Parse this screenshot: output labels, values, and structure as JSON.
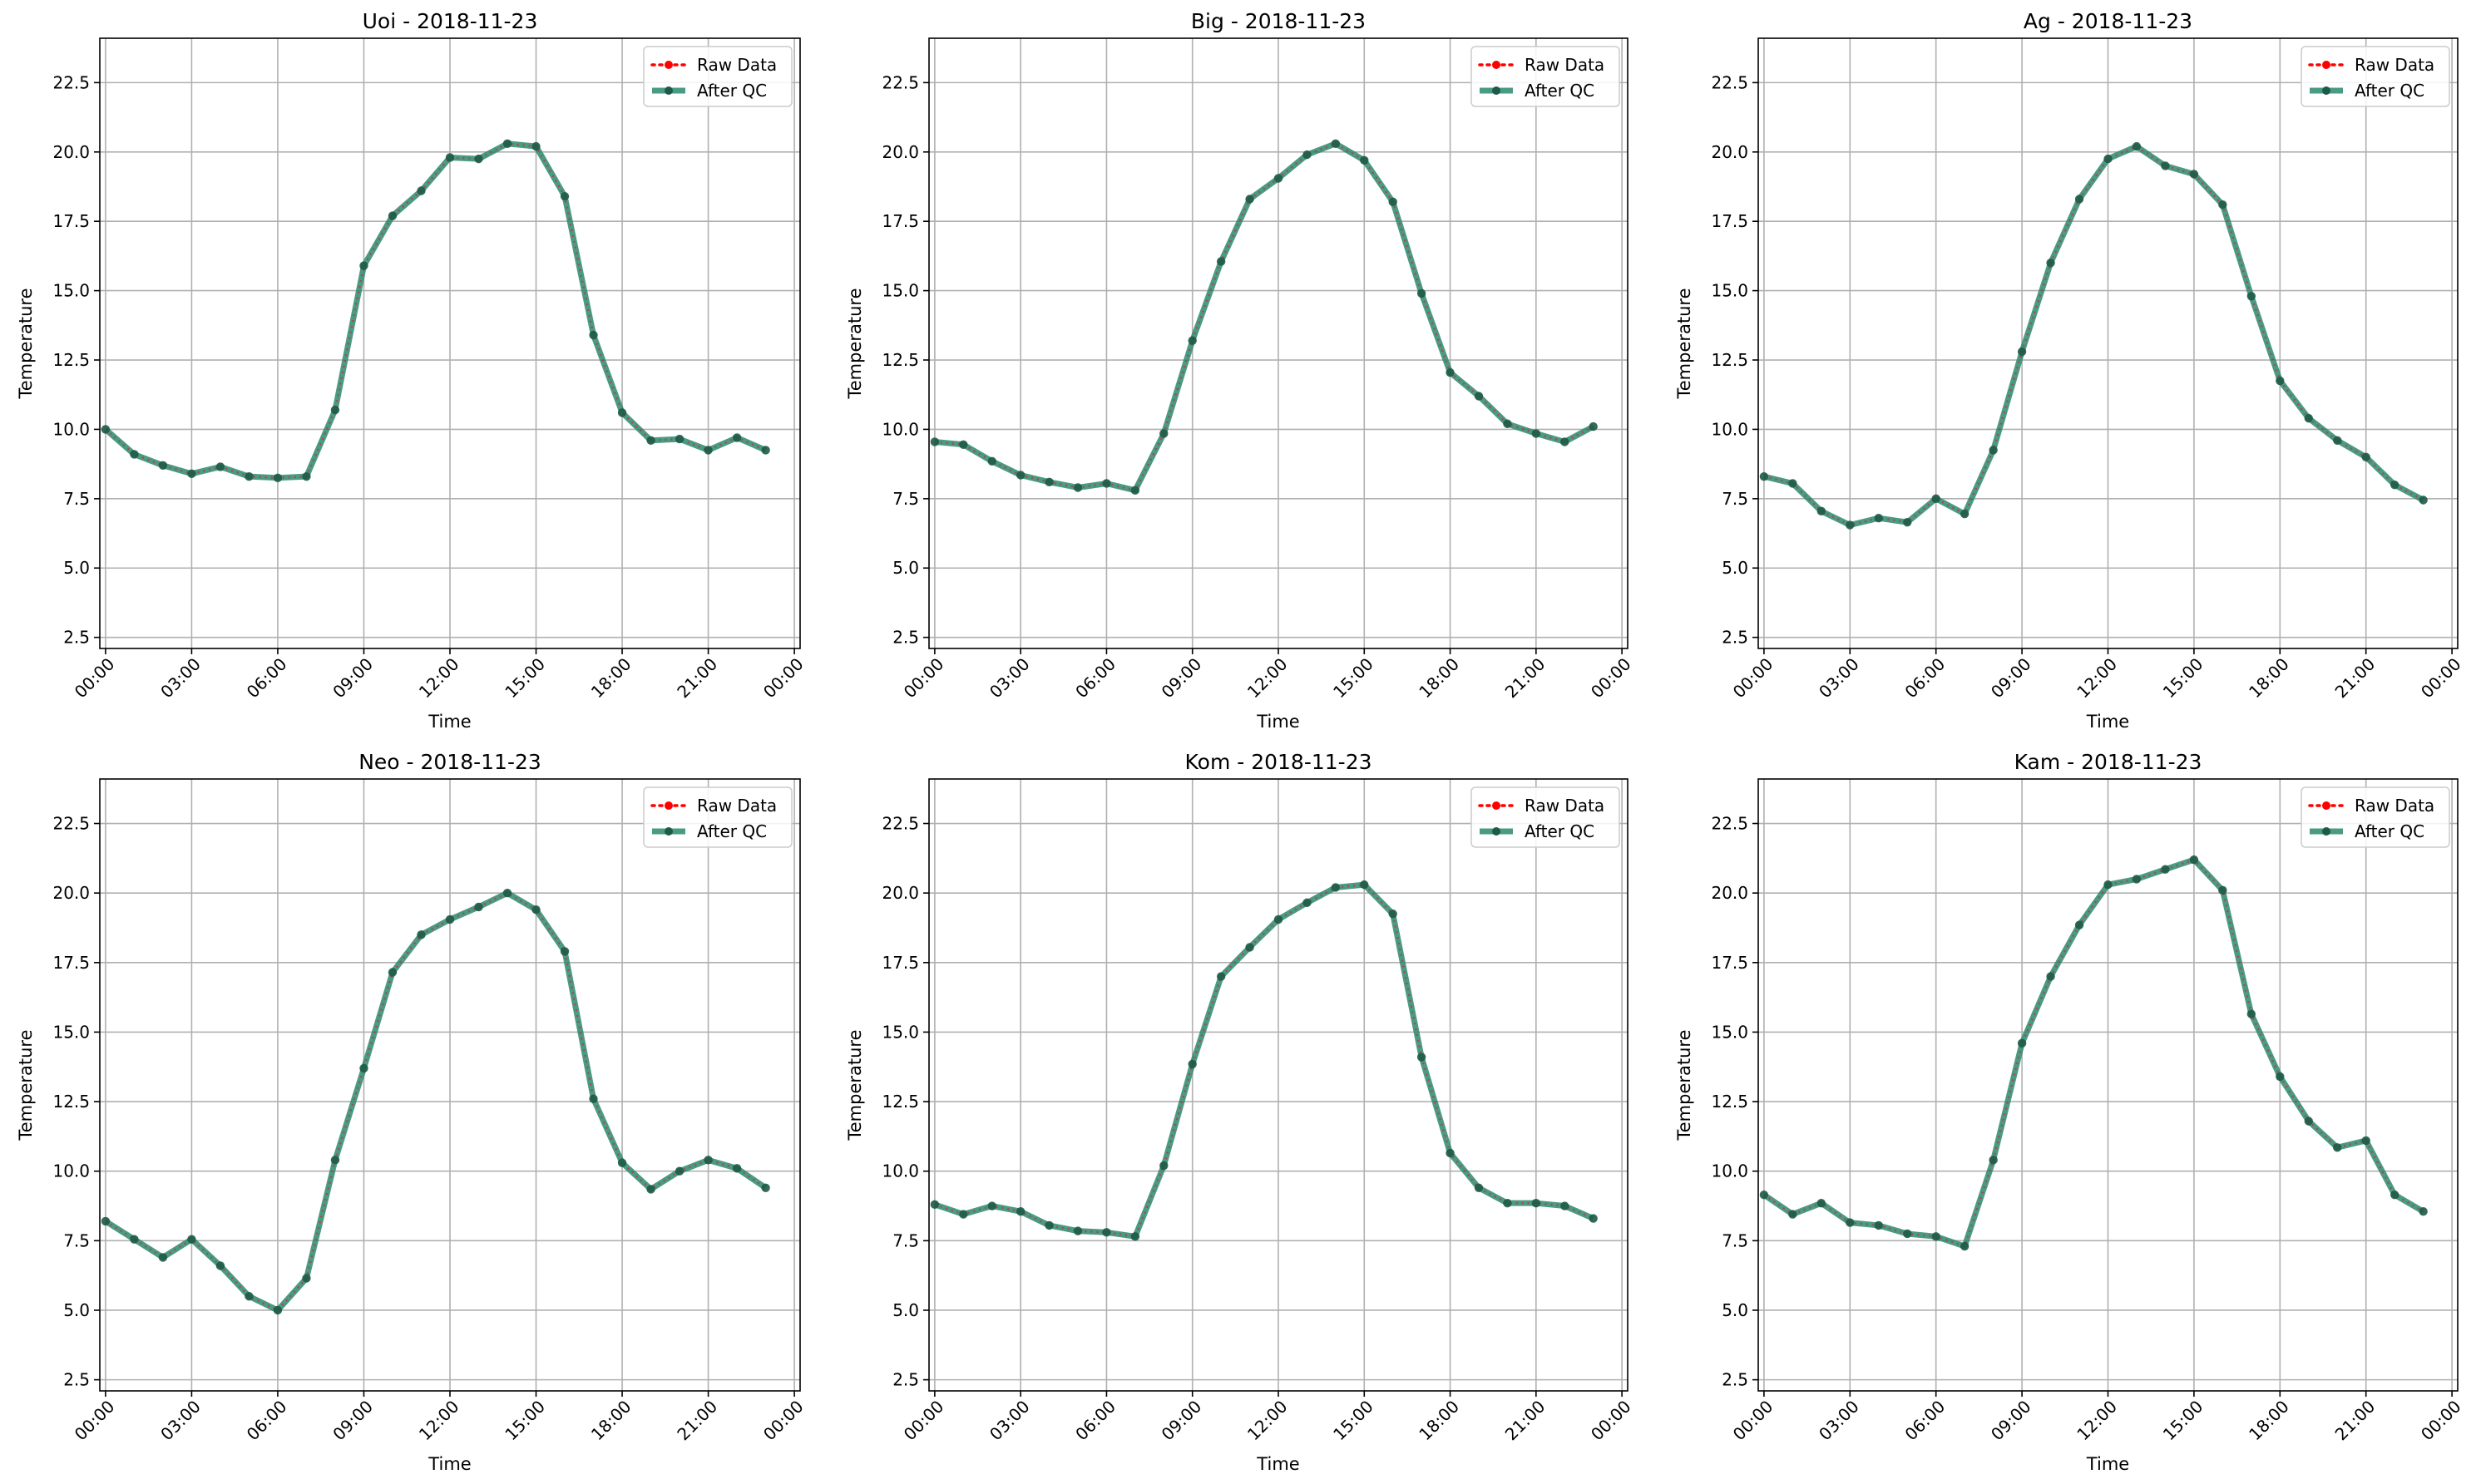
{
  "chart_data": [
    {
      "type": "line",
      "title": "Uoi - 2018-11-23",
      "xlabel": "Time",
      "ylabel": "Temperature",
      "x_tick_labels": [
        "00:00",
        "03:00",
        "06:00",
        "09:00",
        "12:00",
        "15:00",
        "18:00",
        "21:00",
        "00:00"
      ],
      "y_tick_labels": [
        "2.5",
        "5.0",
        "7.5",
        "10.0",
        "12.5",
        "15.0",
        "17.5",
        "20.0",
        "22.5"
      ],
      "ylim": [
        2.1,
        24.1
      ],
      "xlim_hours": [
        -0.2,
        24.2
      ],
      "grid": true,
      "legend_position": "top-right",
      "series": [
        {
          "name": "Raw Data",
          "values": [
            10.0,
            9.1,
            8.7,
            8.4,
            8.65,
            8.3,
            8.25,
            8.3,
            10.7,
            15.9,
            17.7,
            18.6,
            19.8,
            19.75,
            20.3,
            20.2,
            18.4,
            13.4,
            10.6,
            9.6,
            9.65,
            9.25,
            9.7,
            9.25
          ]
        },
        {
          "name": "After QC",
          "values": [
            10.0,
            9.1,
            8.7,
            8.4,
            8.65,
            8.3,
            8.25,
            8.3,
            10.7,
            15.9,
            17.7,
            18.6,
            19.8,
            19.75,
            20.3,
            20.2,
            18.4,
            13.4,
            10.6,
            9.6,
            9.65,
            9.25,
            9.7,
            9.25
          ]
        }
      ]
    },
    {
      "type": "line",
      "title": "Big - 2018-11-23",
      "xlabel": "Time",
      "ylabel": "Temperature",
      "x_tick_labels": [
        "00:00",
        "03:00",
        "06:00",
        "09:00",
        "12:00",
        "15:00",
        "18:00",
        "21:00",
        "00:00"
      ],
      "y_tick_labels": [
        "2.5",
        "5.0",
        "7.5",
        "10.0",
        "12.5",
        "15.0",
        "17.5",
        "20.0",
        "22.5"
      ],
      "ylim": [
        2.1,
        24.1
      ],
      "xlim_hours": [
        -0.2,
        24.2
      ],
      "grid": true,
      "legend_position": "top-right",
      "series": [
        {
          "name": "Raw Data",
          "values": [
            9.55,
            9.45,
            8.85,
            8.35,
            8.1,
            7.9,
            8.05,
            7.8,
            9.85,
            13.2,
            16.05,
            18.3,
            19.05,
            19.9,
            20.3,
            19.7,
            18.2,
            14.9,
            12.05,
            11.2,
            10.2,
            9.85,
            9.55,
            10.1
          ]
        },
        {
          "name": "After QC",
          "values": [
            9.55,
            9.45,
            8.85,
            8.35,
            8.1,
            7.9,
            8.05,
            7.8,
            9.85,
            13.2,
            16.05,
            18.3,
            19.05,
            19.9,
            20.3,
            19.7,
            18.2,
            14.9,
            12.05,
            11.2,
            10.2,
            9.85,
            9.55,
            10.1
          ]
        }
      ]
    },
    {
      "type": "line",
      "title": "Ag - 2018-11-23",
      "xlabel": "Time",
      "ylabel": "Temperature",
      "x_tick_labels": [
        "00:00",
        "03:00",
        "06:00",
        "09:00",
        "12:00",
        "15:00",
        "18:00",
        "21:00",
        "00:00"
      ],
      "y_tick_labels": [
        "2.5",
        "5.0",
        "7.5",
        "10.0",
        "12.5",
        "15.0",
        "17.5",
        "20.0",
        "22.5"
      ],
      "ylim": [
        2.1,
        24.1
      ],
      "xlim_hours": [
        -0.2,
        24.2
      ],
      "grid": true,
      "legend_position": "top-right",
      "series": [
        {
          "name": "Raw Data",
          "values": [
            8.3,
            8.05,
            7.05,
            6.55,
            6.8,
            6.65,
            7.5,
            6.95,
            9.25,
            12.8,
            16.0,
            18.3,
            19.75,
            20.2,
            19.5,
            19.2,
            18.1,
            14.8,
            11.75,
            10.4,
            9.6,
            9.0,
            8.0,
            7.45
          ]
        },
        {
          "name": "After QC",
          "values": [
            8.3,
            8.05,
            7.05,
            6.55,
            6.8,
            6.65,
            7.5,
            6.95,
            9.25,
            12.8,
            16.0,
            18.3,
            19.75,
            20.2,
            19.5,
            19.2,
            18.1,
            14.8,
            11.75,
            10.4,
            9.6,
            9.0,
            8.0,
            7.45
          ]
        }
      ]
    },
    {
      "type": "line",
      "title": "Neo - 2018-11-23",
      "xlabel": "Time",
      "ylabel": "Temperature",
      "x_tick_labels": [
        "00:00",
        "03:00",
        "06:00",
        "09:00",
        "12:00",
        "15:00",
        "18:00",
        "21:00",
        "00:00"
      ],
      "y_tick_labels": [
        "2.5",
        "5.0",
        "7.5",
        "10.0",
        "12.5",
        "15.0",
        "17.5",
        "20.0",
        "22.5"
      ],
      "ylim": [
        2.1,
        24.1
      ],
      "xlim_hours": [
        -0.2,
        24.2
      ],
      "grid": true,
      "legend_position": "top-right",
      "series": [
        {
          "name": "Raw Data",
          "values": [
            8.2,
            7.55,
            6.9,
            7.55,
            6.6,
            5.5,
            5.0,
            6.15,
            10.4,
            13.7,
            17.15,
            18.5,
            19.05,
            19.5,
            20.0,
            19.4,
            17.9,
            12.6,
            10.3,
            9.35,
            10.0,
            10.4,
            10.1,
            9.4
          ]
        },
        {
          "name": "After QC",
          "values": [
            8.2,
            7.55,
            6.9,
            7.55,
            6.6,
            5.5,
            5.0,
            6.15,
            10.4,
            13.7,
            17.15,
            18.5,
            19.05,
            19.5,
            20.0,
            19.4,
            17.9,
            12.6,
            10.3,
            9.35,
            10.0,
            10.4,
            10.1,
            9.4
          ]
        }
      ]
    },
    {
      "type": "line",
      "title": "Kom - 2018-11-23",
      "xlabel": "Time",
      "ylabel": "Temperature",
      "x_tick_labels": [
        "00:00",
        "03:00",
        "06:00",
        "09:00",
        "12:00",
        "15:00",
        "18:00",
        "21:00",
        "00:00"
      ],
      "y_tick_labels": [
        "2.5",
        "5.0",
        "7.5",
        "10.0",
        "12.5",
        "15.0",
        "17.5",
        "20.0",
        "22.5"
      ],
      "ylim": [
        2.1,
        24.1
      ],
      "xlim_hours": [
        -0.2,
        24.2
      ],
      "grid": true,
      "legend_position": "top-right",
      "series": [
        {
          "name": "Raw Data",
          "values": [
            8.8,
            8.45,
            8.75,
            8.55,
            8.05,
            7.85,
            7.8,
            7.65,
            10.2,
            13.85,
            17.0,
            18.05,
            19.05,
            19.65,
            20.2,
            20.3,
            19.25,
            14.1,
            10.65,
            9.4,
            8.85,
            8.85,
            8.75,
            8.3
          ]
        },
        {
          "name": "After QC",
          "values": [
            8.8,
            8.45,
            8.75,
            8.55,
            8.05,
            7.85,
            7.8,
            7.65,
            10.2,
            13.85,
            17.0,
            18.05,
            19.05,
            19.65,
            20.2,
            20.3,
            19.25,
            14.1,
            10.65,
            9.4,
            8.85,
            8.85,
            8.75,
            8.3
          ]
        }
      ]
    },
    {
      "type": "line",
      "title": "Kam - 2018-11-23",
      "xlabel": "Time",
      "ylabel": "Temperature",
      "x_tick_labels": [
        "00:00",
        "03:00",
        "06:00",
        "09:00",
        "12:00",
        "15:00",
        "18:00",
        "21:00",
        "00:00"
      ],
      "y_tick_labels": [
        "2.5",
        "5.0",
        "7.5",
        "10.0",
        "12.5",
        "15.0",
        "17.5",
        "20.0",
        "22.5"
      ],
      "ylim": [
        2.1,
        24.1
      ],
      "xlim_hours": [
        -0.2,
        24.2
      ],
      "grid": true,
      "legend_position": "top-right",
      "series": [
        {
          "name": "Raw Data",
          "values": [
            9.15,
            8.45,
            8.85,
            8.15,
            8.05,
            7.75,
            7.65,
            7.3,
            10.4,
            14.6,
            17.0,
            18.85,
            20.3,
            20.5,
            20.85,
            21.2,
            20.1,
            15.65,
            13.4,
            11.8,
            10.85,
            11.1,
            9.15,
            8.55
          ]
        },
        {
          "name": "After QC",
          "values": [
            9.15,
            8.45,
            8.85,
            8.15,
            8.05,
            7.75,
            7.65,
            7.3,
            10.4,
            14.6,
            17.0,
            18.85,
            20.3,
            20.5,
            20.85,
            21.2,
            20.1,
            15.65,
            13.4,
            11.8,
            10.85,
            11.1,
            9.15,
            8.55
          ]
        }
      ]
    }
  ],
  "colors": {
    "raw": "#ff0000",
    "qc": "#2a8a6e",
    "grid": "#b0b0b0",
    "legend_border": "#cccccc"
  }
}
